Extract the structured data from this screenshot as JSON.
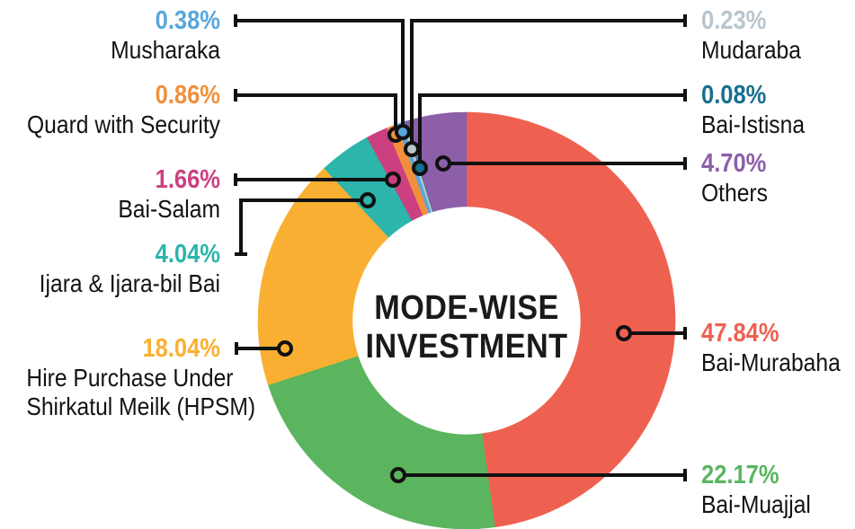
{
  "title": {
    "line1": "MODE-WISE",
    "line2": "INVESTMENT"
  },
  "colors": {
    "background": "#ffffff",
    "text": "#131313",
    "leader_line": "#111111"
  },
  "chart_data": {
    "type": "pie",
    "subtype": "donut",
    "title": "MODE-WISE INVESTMENT",
    "unit": "%",
    "order": "clockwise-from-top",
    "legend_position": "callout-labels",
    "series": [
      {
        "name": "Bai-Murabaha",
        "value": 47.84,
        "label": "47.84%",
        "color": "#ee6150",
        "display": [
          "Bai-Murabaha"
        ]
      },
      {
        "name": "Bai-Muajjal",
        "value": 22.17,
        "label": "22.17%",
        "color": "#5bb55e",
        "display": [
          "Bai-Muajjal"
        ]
      },
      {
        "name": "Hire Purchase Under Shirkatul Meilk (HPSM)",
        "value": 18.04,
        "label": "18.04%",
        "color": "#f9b032",
        "display": [
          "Hire Purchase Under",
          "Shirkatul Meilk (HPSM)"
        ]
      },
      {
        "name": "Ijara & Ijara-bil Bai",
        "value": 4.04,
        "label": "4.04%",
        "color": "#2bb5ab",
        "display": [
          "Ijara & Ijara-bil Bai"
        ]
      },
      {
        "name": "Bai-Salam",
        "value": 1.66,
        "label": "1.66%",
        "color": "#cc3f80",
        "display": [
          "Bai-Salam"
        ]
      },
      {
        "name": "Quard with Security",
        "value": 0.86,
        "label": "0.86%",
        "color": "#f1903c",
        "display": [
          "Quard with Security"
        ]
      },
      {
        "name": "Musharaka",
        "value": 0.38,
        "label": "0.38%",
        "color": "#57a7dc",
        "display": [
          "Musharaka"
        ]
      },
      {
        "name": "Mudaraba",
        "value": 0.23,
        "label": "0.23%",
        "color": "#b9c5cd",
        "display": [
          "Mudaraba"
        ]
      },
      {
        "name": "Bai-Istisna",
        "value": 0.08,
        "label": "0.08%",
        "color": "#186f8f",
        "display": [
          "Bai-Istisna"
        ]
      },
      {
        "name": "Others",
        "value": 4.7,
        "label": "4.70%",
        "color": "#8c5fa8",
        "display": [
          "Others"
        ]
      }
    ]
  }
}
